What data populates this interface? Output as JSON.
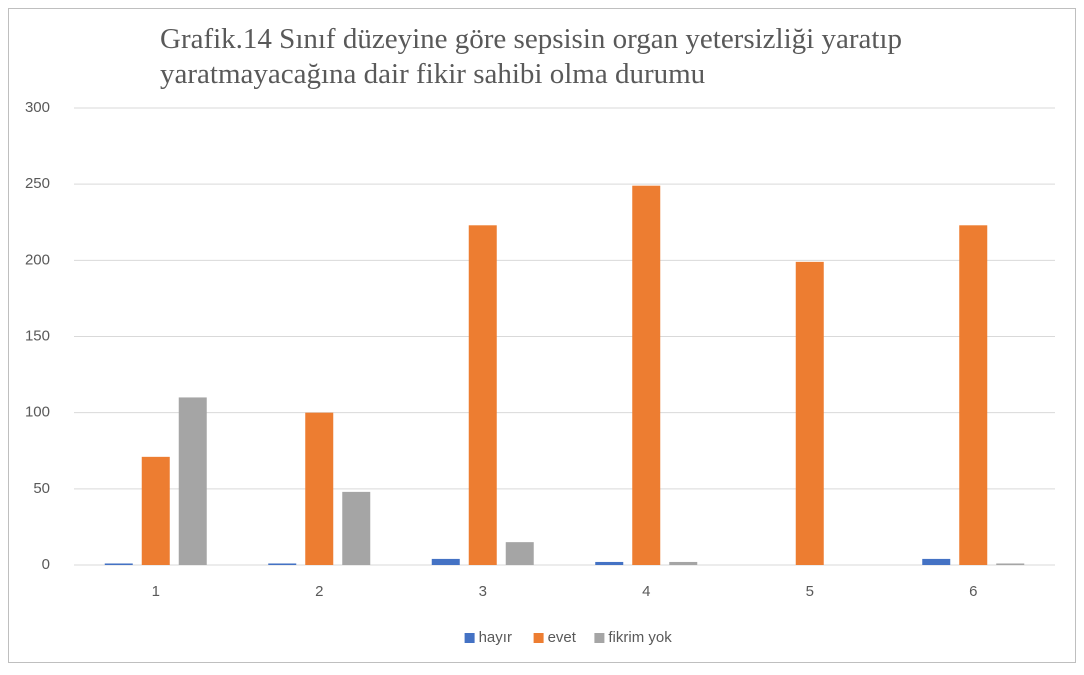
{
  "chart_data": {
    "type": "bar",
    "title": "Grafik.14 Sınıf düzeyine göre sepsisin organ yetersizliği yaratıp yaratmayacağına dair fikir sahibi olma durumu",
    "categories": [
      "1",
      "2",
      "3",
      "4",
      "5",
      "6"
    ],
    "series": [
      {
        "name": "hayır",
        "color": "#4472c4",
        "values": [
          1,
          1,
          4,
          2,
          0,
          4
        ]
      },
      {
        "name": "evet",
        "color": "#ed7d31",
        "values": [
          71,
          100,
          223,
          249,
          199,
          223
        ]
      },
      {
        "name": "fikrim yok",
        "color": "#a5a5a5",
        "values": [
          110,
          48,
          15,
          2,
          0,
          1
        ]
      }
    ],
    "ylim": [
      0,
      300
    ],
    "yticks": [
      0,
      50,
      100,
      150,
      200,
      250,
      300
    ],
    "grid": true,
    "legend": "bottom"
  }
}
